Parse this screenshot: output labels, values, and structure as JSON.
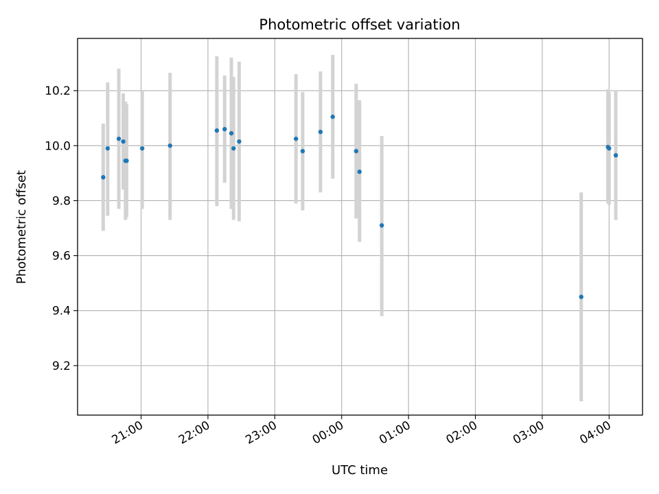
{
  "chart_data": {
    "type": "scatter",
    "title": "Photometric offset variation",
    "xlabel": "UTC time",
    "ylabel": "Photometric offset",
    "x_is_time": true,
    "xlim": [
      "20:03",
      "04:30"
    ],
    "ylim": [
      9.02,
      10.39
    ],
    "grid": true,
    "yticks": [
      9.2,
      9.4,
      9.6,
      9.8,
      10.0,
      10.2
    ],
    "ytick_labels": [
      "9.2",
      "9.4",
      "9.6",
      "9.8",
      "10.0",
      "10.2"
    ],
    "xticks": [
      "21:00",
      "22:00",
      "23:00",
      "00:00",
      "01:00",
      "02:00",
      "03:00",
      "04:00"
    ],
    "xtick_labels": [
      "21:00",
      "22:00",
      "23:00",
      "00:00",
      "01:00",
      "02:00",
      "03:00",
      "04:00"
    ],
    "marker_color": "#1f77b4",
    "errorbar_color": "#d3d3d3",
    "points": [
      {
        "x": "20:26",
        "y": 9.885,
        "err_low": 9.69,
        "err_high": 10.08
      },
      {
        "x": "20:30",
        "y": 9.99,
        "err_low": 9.745,
        "err_high": 10.23
      },
      {
        "x": "20:40",
        "y": 10.025,
        "err_low": 9.77,
        "err_high": 10.28
      },
      {
        "x": "20:44",
        "y": 10.015,
        "err_low": 9.84,
        "err_high": 10.19
      },
      {
        "x": "20:46",
        "y": 9.945,
        "err_low": 9.73,
        "err_high": 10.16
      },
      {
        "x": "20:47",
        "y": 9.945,
        "err_low": 9.74,
        "err_high": 10.15
      },
      {
        "x": "21:01",
        "y": 9.99,
        "err_low": 9.77,
        "err_high": 10.2
      },
      {
        "x": "21:26",
        "y": 10.0,
        "err_low": 9.73,
        "err_high": 10.265
      },
      {
        "x": "22:08",
        "y": 10.055,
        "err_low": 9.78,
        "err_high": 10.325
      },
      {
        "x": "22:15",
        "y": 10.06,
        "err_low": 9.865,
        "err_high": 10.255
      },
      {
        "x": "22:21",
        "y": 10.045,
        "err_low": 9.77,
        "err_high": 10.32
      },
      {
        "x": "22:23",
        "y": 9.99,
        "err_low": 9.73,
        "err_high": 10.25
      },
      {
        "x": "22:28",
        "y": 10.015,
        "err_low": 9.725,
        "err_high": 10.305
      },
      {
        "x": "23:19",
        "y": 10.025,
        "err_low": 9.79,
        "err_high": 10.26
      },
      {
        "x": "23:25",
        "y": 9.98,
        "err_low": 9.765,
        "err_high": 10.195
      },
      {
        "x": "23:41",
        "y": 10.05,
        "err_low": 9.83,
        "err_high": 10.27
      },
      {
        "x": "23:52",
        "y": 10.105,
        "err_low": 9.88,
        "err_high": 10.33
      },
      {
        "x": "00:13",
        "y": 9.98,
        "err_low": 9.735,
        "err_high": 10.225
      },
      {
        "x": "00:16",
        "y": 9.905,
        "err_low": 9.65,
        "err_high": 10.165
      },
      {
        "x": "00:36",
        "y": 9.71,
        "err_low": 9.38,
        "err_high": 10.035
      },
      {
        "x": "03:35",
        "y": 9.45,
        "err_low": 9.07,
        "err_high": 9.83
      },
      {
        "x": "03:59",
        "y": 9.995,
        "err_low": 9.79,
        "err_high": 10.205
      },
      {
        "x": "04:00",
        "y": 9.99,
        "err_low": 9.785,
        "err_high": 10.195
      },
      {
        "x": "04:06",
        "y": 9.965,
        "err_low": 9.73,
        "err_high": 10.2
      }
    ]
  }
}
